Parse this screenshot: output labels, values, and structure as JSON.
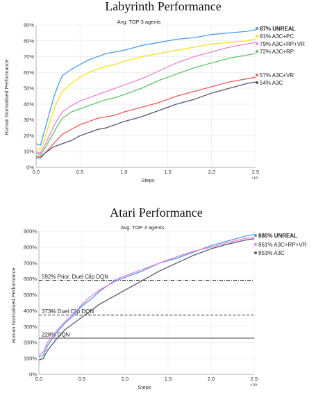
{
  "chart_data": [
    {
      "type": "line",
      "title": "Labyrinth Performance",
      "subtitle": "Avg. TOP 3 agents",
      "xlabel": "Steps",
      "ylabel": "Human Normalised Performance",
      "x_exponent": "×10⁷",
      "xlim": [
        0,
        2.5
      ],
      "ylim": [
        0,
        90
      ],
      "xticks": [
        "0.0",
        "0.5",
        "1.0",
        "1.5",
        "2.0",
        "2.5"
      ],
      "yticks": [
        "0%",
        "10%",
        "20%",
        "30%",
        "40%",
        "50%",
        "60%",
        "70%",
        "80%",
        "90%"
      ],
      "grid": true,
      "legend_position": "right",
      "series": [
        {
          "name": "87% UNREAL",
          "color": "#4a9be6",
          "bold": true,
          "x": [
            0.0,
            0.05,
            0.1,
            0.15,
            0.2,
            0.25,
            0.3,
            0.4,
            0.5,
            0.6,
            0.7,
            0.8,
            0.9,
            1.0,
            1.2,
            1.4,
            1.6,
            1.8,
            2.0,
            2.2,
            2.4,
            2.5
          ],
          "y": [
            15,
            14,
            24,
            34,
            44,
            52,
            58,
            62,
            65,
            68,
            70,
            72,
            73,
            74,
            77,
            79,
            81,
            82,
            84,
            85,
            86,
            87
          ]
        },
        {
          "name": "81% A3C+PC",
          "color": "#f5e21f",
          "bold": false,
          "x": [
            0.0,
            0.05,
            0.1,
            0.15,
            0.2,
            0.25,
            0.3,
            0.4,
            0.5,
            0.6,
            0.7,
            0.8,
            0.9,
            1.0,
            1.2,
            1.4,
            1.6,
            1.8,
            2.0,
            2.2,
            2.4,
            2.5
          ],
          "y": [
            12,
            11,
            18,
            28,
            36,
            43,
            48,
            53,
            57,
            60,
            62,
            64,
            65,
            67,
            70,
            72,
            74,
            76,
            78,
            79,
            80,
            81
          ]
        },
        {
          "name": "79% A3C+RP+VR",
          "color": "#ee7ed8",
          "bold": false,
          "x": [
            0.0,
            0.05,
            0.1,
            0.15,
            0.2,
            0.25,
            0.3,
            0.4,
            0.5,
            0.6,
            0.7,
            0.8,
            0.9,
            1.0,
            1.2,
            1.4,
            1.6,
            1.8,
            2.0,
            2.2,
            2.4,
            2.5
          ],
          "y": [
            10,
            9,
            14,
            20,
            26,
            31,
            35,
            39,
            42,
            44,
            46,
            48,
            50,
            52,
            56,
            61,
            66,
            70,
            73,
            76,
            78,
            79
          ]
        },
        {
          "name": "72% A3C+RP",
          "color": "#5ec46a",
          "bold": false,
          "x": [
            0.0,
            0.05,
            0.1,
            0.15,
            0.2,
            0.25,
            0.3,
            0.4,
            0.5,
            0.6,
            0.7,
            0.8,
            0.9,
            1.0,
            1.2,
            1.4,
            1.6,
            1.8,
            2.0,
            2.2,
            2.4,
            2.5
          ],
          "y": [
            9,
            8,
            12,
            17,
            22,
            27,
            31,
            35,
            37,
            39,
            41,
            43,
            44,
            46,
            50,
            55,
            59,
            63,
            66,
            69,
            71,
            72
          ]
        },
        {
          "name": "57% A3C+VR",
          "color": "#ee5a5a",
          "bold": false,
          "x": [
            0.0,
            0.05,
            0.1,
            0.15,
            0.2,
            0.25,
            0.3,
            0.4,
            0.5,
            0.6,
            0.7,
            0.8,
            0.9,
            1.0,
            1.2,
            1.4,
            1.6,
            1.8,
            2.0,
            2.2,
            2.4,
            2.5
          ],
          "y": [
            7,
            7,
            9,
            12,
            15,
            18,
            21,
            24,
            27,
            29,
            31,
            32,
            33,
            35,
            38,
            41,
            45,
            48,
            51,
            54,
            56,
            57
          ]
        },
        {
          "name": "54% A3C",
          "color": "#555570",
          "bold": false,
          "x": [
            0.0,
            0.05,
            0.1,
            0.15,
            0.2,
            0.25,
            0.3,
            0.4,
            0.5,
            0.6,
            0.7,
            0.8,
            0.9,
            1.0,
            1.2,
            1.4,
            1.6,
            1.8,
            2.0,
            2.2,
            2.4,
            2.5
          ],
          "y": [
            6,
            6,
            9,
            11,
            13,
            14,
            15,
            17,
            20,
            22,
            24,
            25,
            27,
            29,
            32,
            36,
            40,
            43,
            47,
            50,
            53,
            54
          ]
        }
      ]
    },
    {
      "type": "line",
      "title": "Atari Performance",
      "subtitle": "Avg. TOP 3 agents",
      "xlabel": "Steps",
      "ylabel": "Human Normalised Performance",
      "x_exponent": "×10⁸",
      "xlim": [
        0,
        2.5
      ],
      "ylim": [
        0,
        900
      ],
      "xticks": [
        "0.0",
        "0.5",
        "1.0",
        "1.5",
        "2.0",
        "2.5"
      ],
      "yticks": [
        "0%",
        "100%",
        "200%",
        "300%",
        "400%",
        "500%",
        "600%",
        "700%",
        "800%",
        "900%"
      ],
      "grid": true,
      "legend_position": "top-right",
      "reference_lines": [
        {
          "label": "592% Prior. Duel Clip DQN",
          "y": 592,
          "style": "dashdot"
        },
        {
          "label": "373% Duel Clip DQN",
          "y": 373,
          "style": "dashed"
        },
        {
          "label": "228% DQN",
          "y": 228,
          "style": "solid"
        }
      ],
      "series": [
        {
          "name": "880% UNREAL",
          "color": "#4a9be6",
          "bold": true,
          "x": [
            0.0,
            0.05,
            0.1,
            0.2,
            0.3,
            0.4,
            0.5,
            0.6,
            0.7,
            0.8,
            0.9,
            1.0,
            1.2,
            1.4,
            1.6,
            1.8,
            2.0,
            2.2,
            2.4,
            2.5
          ],
          "y": [
            110,
            120,
            180,
            260,
            320,
            370,
            430,
            470,
            520,
            560,
            590,
            610,
            650,
            700,
            730,
            770,
            810,
            840,
            870,
            880
          ]
        },
        {
          "name": "861% A3C+RP+VR",
          "color": "#ee7ed8",
          "bold": false,
          "x": [
            0.0,
            0.05,
            0.1,
            0.2,
            0.3,
            0.4,
            0.5,
            0.6,
            0.7,
            0.8,
            0.9,
            1.0,
            1.2,
            1.4,
            1.6,
            1.8,
            2.0,
            2.2,
            2.4,
            2.5
          ],
          "y": [
            120,
            140,
            200,
            270,
            330,
            380,
            440,
            490,
            530,
            560,
            600,
            620,
            660,
            700,
            740,
            775,
            800,
            830,
            855,
            861
          ]
        },
        {
          "name": "853% A3C",
          "color": "#555570",
          "bold": false,
          "x": [
            0.0,
            0.05,
            0.1,
            0.2,
            0.3,
            0.4,
            0.5,
            0.6,
            0.7,
            0.8,
            0.9,
            1.0,
            1.2,
            1.4,
            1.6,
            1.8,
            2.0,
            2.2,
            2.4,
            2.5
          ],
          "y": [
            90,
            100,
            150,
            220,
            280,
            320,
            360,
            400,
            440,
            470,
            500,
            530,
            590,
            650,
            700,
            750,
            790,
            820,
            845,
            853
          ]
        }
      ]
    }
  ]
}
